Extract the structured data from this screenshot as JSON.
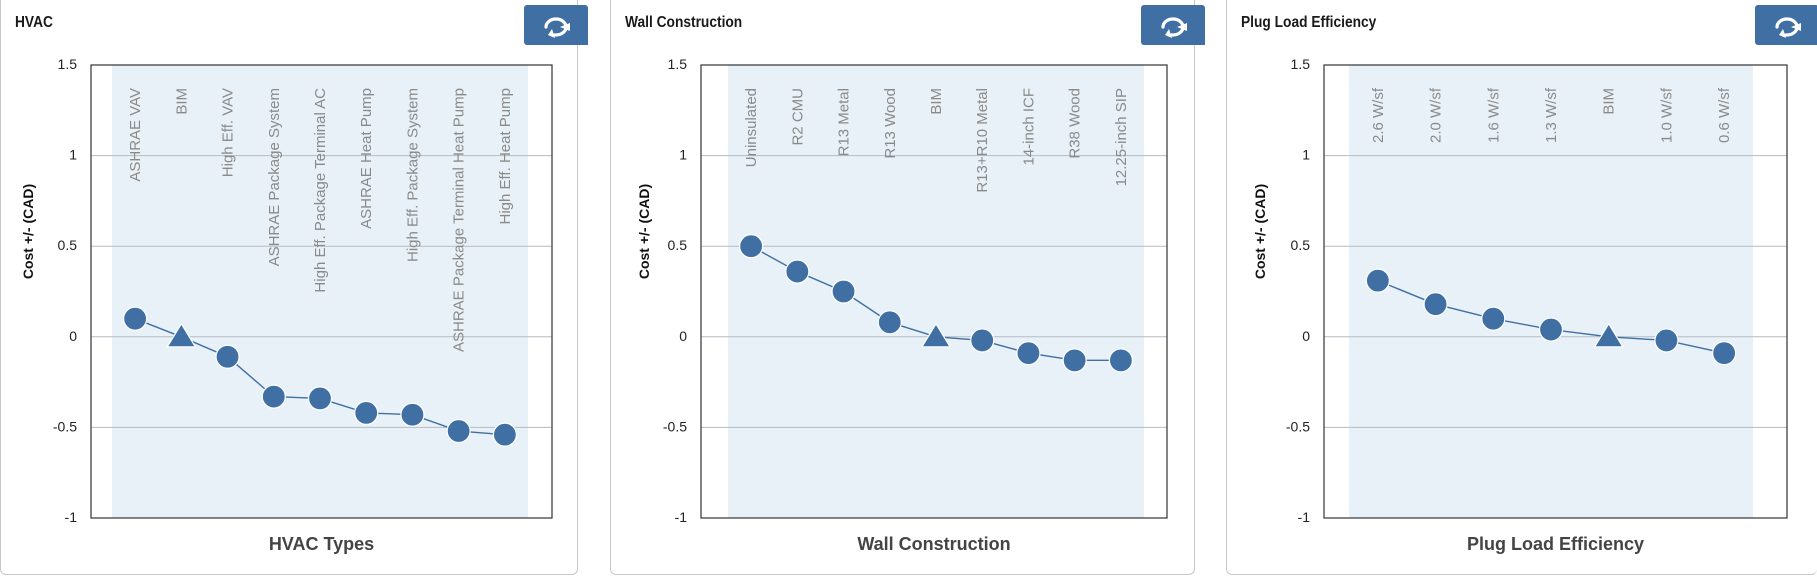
{
  "colors": {
    "plot_bg": "#e8f1f8",
    "marker": "#3f6fa3",
    "grid": "#b5bcc4",
    "category_text": "#8a8a8a",
    "button": "#3f6fa3"
  },
  "icons": {
    "reset": "reset-arrow-icon"
  },
  "panels": [
    {
      "title": "HVAC",
      "xlabel": "HVAC Types"
    },
    {
      "title": "Wall Construction",
      "xlabel": "Wall Construction"
    },
    {
      "title": "Plug Load Efficiency",
      "xlabel": "Plug Load Efficiency"
    }
  ],
  "chart_data": [
    {
      "type": "line",
      "title": "HVAC",
      "xlabel": "HVAC Types",
      "ylabel": "Cost +/- (CAD)",
      "ylim": [
        -1,
        1.5
      ],
      "yticks": [
        "1.5",
        "1",
        "0.5",
        "0",
        "-0.5",
        "-1"
      ],
      "grid": true,
      "categories": [
        "ASHRAE VAV",
        "BIM",
        "High Eff. VAV",
        "ASHRAE Package System",
        "High Eff. Package Terminal AC",
        "ASHRAE Heat Pump",
        "High Eff. Package System",
        "ASHRAE Package Terminal Heat Pump",
        "High Eff. Heat Pump"
      ],
      "values": [
        0.1,
        0.0,
        -0.11,
        -0.33,
        -0.34,
        -0.42,
        -0.43,
        -0.52,
        -0.54
      ],
      "markers": [
        "circle",
        "triangle",
        "circle",
        "circle",
        "circle",
        "circle",
        "circle",
        "circle",
        "circle"
      ]
    },
    {
      "type": "line",
      "title": "Wall Construction",
      "xlabel": "Wall Construction",
      "ylabel": "Cost +/- (CAD)",
      "ylim": [
        -1,
        1.5
      ],
      "yticks": [
        "1.5",
        "1",
        "0.5",
        "0",
        "-0.5",
        "-1"
      ],
      "grid": true,
      "categories": [
        "Uninsulated",
        "R2 CMU",
        "R13 Metal",
        "R13 Wood",
        "BIM",
        "R13+R10 Metal",
        "14-inch ICF",
        "R38 Wood",
        "12.25-inch SIP"
      ],
      "values": [
        0.5,
        0.36,
        0.25,
        0.08,
        0.0,
        -0.02,
        -0.09,
        -0.13,
        -0.13
      ],
      "markers": [
        "circle",
        "circle",
        "circle",
        "circle",
        "triangle",
        "circle",
        "circle",
        "circle",
        "circle"
      ]
    },
    {
      "type": "line",
      "title": "Plug Load Efficiency",
      "xlabel": "Plug Load Efficiency",
      "ylabel": "Cost +/- (CAD)",
      "ylim": [
        -1,
        1.5
      ],
      "yticks": [
        "1.5",
        "1",
        "0.5",
        "0",
        "-0.5",
        "-1"
      ],
      "grid": true,
      "categories": [
        "2.6 W/sf",
        "2.0 W/sf",
        "1.6 W/sf",
        "1.3 W/sf",
        "BIM",
        "1.0 W/sf",
        "0.6 W/sf"
      ],
      "values": [
        0.31,
        0.18,
        0.1,
        0.04,
        0.0,
        -0.02,
        -0.09
      ],
      "markers": [
        "circle",
        "circle",
        "circle",
        "circle",
        "triangle",
        "circle",
        "circle"
      ]
    }
  ]
}
